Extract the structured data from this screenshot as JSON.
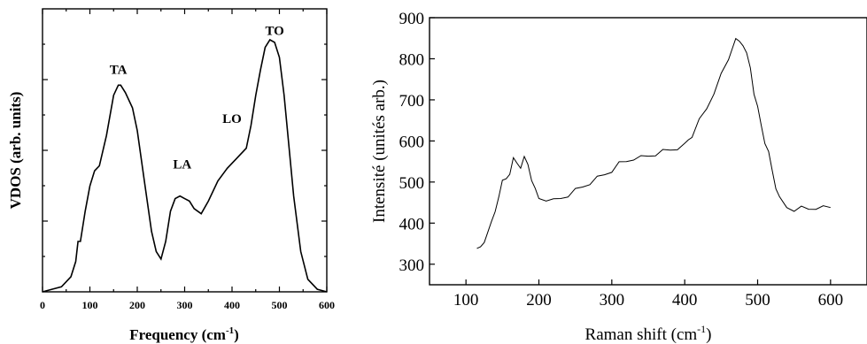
{
  "chart_data": [
    {
      "type": "line",
      "title": "",
      "xlabel": "Frequency (cm",
      "xlabel_sup": "-1",
      "xlabel_close": ")",
      "ylabel": "VDOS (arb. units)",
      "xlim": [
        0,
        600
      ],
      "ylim": [
        0,
        1
      ],
      "x_ticks": [
        0,
        100,
        200,
        300,
        400,
        500,
        600
      ],
      "x_tick_labels": [
        "0",
        "100",
        "200",
        "300",
        "400",
        "500",
        "600"
      ],
      "y_tick_labels_visible": false,
      "grid": false,
      "annotations": [
        {
          "text": "TA",
          "x": 160,
          "y": 0.865
        },
        {
          "text": "LA",
          "x": 295,
          "y": 0.49
        },
        {
          "text": "LO",
          "x": 400,
          "y": 0.67
        },
        {
          "text": "TO",
          "x": 490,
          "y": 1.02
        }
      ],
      "series": [
        {
          "x": [
            0,
            20,
            40,
            60,
            70,
            75,
            80,
            90,
            100,
            110,
            120,
            135,
            150,
            160,
            165,
            175,
            190,
            200,
            215,
            230,
            240,
            250,
            260,
            270,
            280,
            290,
            300,
            310,
            320,
            335,
            350,
            370,
            390,
            410,
            430,
            440,
            450,
            460,
            470,
            480,
            490,
            500,
            510,
            520,
            530,
            545,
            560,
            580,
            600
          ],
          "y": [
            0,
            0.01,
            0.02,
            0.06,
            0.12,
            0.2,
            0.2,
            0.32,
            0.42,
            0.48,
            0.5,
            0.62,
            0.78,
            0.82,
            0.82,
            0.79,
            0.73,
            0.64,
            0.44,
            0.24,
            0.16,
            0.13,
            0.2,
            0.32,
            0.37,
            0.38,
            0.37,
            0.36,
            0.33,
            0.31,
            0.36,
            0.44,
            0.49,
            0.53,
            0.57,
            0.66,
            0.78,
            0.88,
            0.97,
            1.0,
            0.99,
            0.93,
            0.78,
            0.58,
            0.38,
            0.16,
            0.05,
            0.01,
            0.0
          ]
        }
      ]
    },
    {
      "type": "line",
      "title": "",
      "xlabel": "Raman shift (cm",
      "xlabel_sup": "-1",
      "xlabel_close": ")",
      "ylabel": "Intensité (unités arb.)",
      "xlim": [
        50,
        650
      ],
      "ylim": [
        250,
        900
      ],
      "x_ticks": [
        100,
        200,
        300,
        400,
        500,
        600
      ],
      "x_tick_labels": [
        "100",
        "200",
        "300",
        "400",
        "500",
        "600"
      ],
      "y_ticks": [
        300,
        400,
        500,
        600,
        700,
        800,
        900
      ],
      "y_tick_labels": [
        "300",
        "400",
        "500",
        "600",
        "700",
        "800",
        "900"
      ],
      "grid": false,
      "series": [
        {
          "x": [
            115,
            120,
            125,
            130,
            135,
            140,
            145,
            150,
            155,
            160,
            165,
            170,
            175,
            180,
            185,
            190,
            195,
            200,
            210,
            220,
            230,
            240,
            250,
            260,
            270,
            280,
            290,
            300,
            310,
            320,
            330,
            340,
            350,
            360,
            370,
            380,
            390,
            400,
            405,
            410,
            420,
            430,
            440,
            450,
            460,
            465,
            470,
            475,
            480,
            485,
            490,
            495,
            500,
            505,
            510,
            515,
            520,
            525,
            530,
            540,
            550,
            560,
            570,
            580,
            590,
            600
          ],
          "y": [
            345,
            338,
            355,
            385,
            400,
            430,
            470,
            500,
            510,
            525,
            555,
            548,
            540,
            558,
            545,
            510,
            480,
            462,
            460,
            455,
            462,
            470,
            480,
            490,
            500,
            510,
            520,
            530,
            545,
            552,
            560,
            560,
            565,
            570,
            575,
            580,
            585,
            590,
            605,
            615,
            650,
            680,
            720,
            760,
            800,
            830,
            845,
            845,
            838,
            810,
            780,
            720,
            680,
            640,
            600,
            570,
            530,
            490,
            460,
            440,
            435,
            437,
            436,
            440,
            438,
            440
          ]
        }
      ]
    }
  ]
}
